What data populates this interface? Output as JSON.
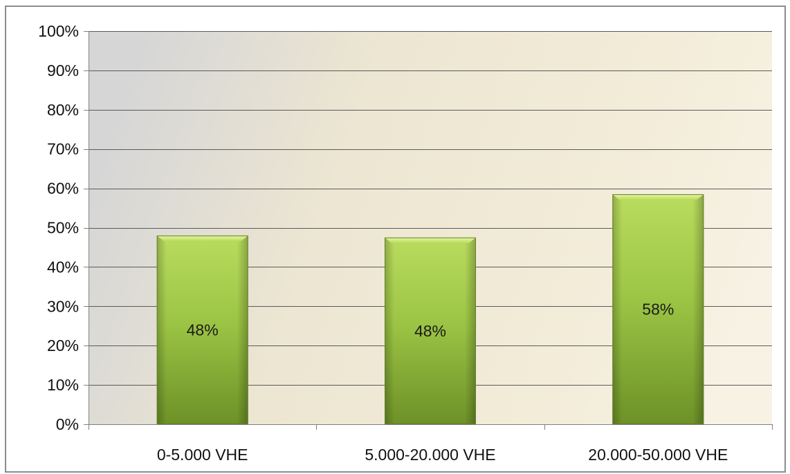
{
  "chart_data": {
    "type": "bar",
    "title": "",
    "xlabel": "",
    "ylabel": "",
    "categories": [
      "0-5.000 VHE",
      "5.000-20.000 VHE",
      "20.000-50.000 VHE"
    ],
    "values": [
      48,
      47.5,
      58.5
    ],
    "data_labels": [
      "48%",
      "48%",
      "58%"
    ],
    "ylim": [
      0,
      100
    ],
    "yticks": [
      0,
      10,
      20,
      30,
      40,
      50,
      60,
      70,
      80,
      90,
      100
    ],
    "ytick_labels": [
      "0%",
      "10%",
      "20%",
      "30%",
      "40%",
      "50%",
      "60%",
      "70%",
      "80%",
      "90%",
      "100%"
    ],
    "grid": true,
    "legend": "none",
    "colors": {
      "bar_light": "#b5d95a",
      "bar_dark": "#6f9428",
      "bar_edge": "#5d7d22",
      "plot_bg_left": "#d9d9d9",
      "plot_bg_right": "#f3ecd8",
      "gridline": "#555555"
    }
  }
}
